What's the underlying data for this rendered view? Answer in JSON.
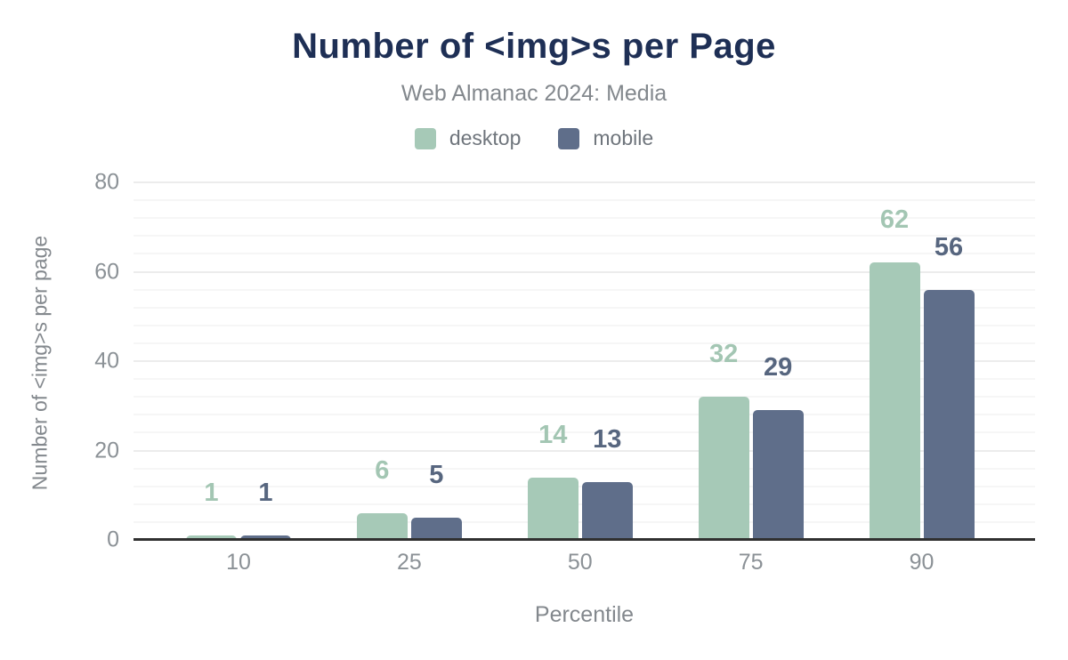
{
  "chart_data": {
    "type": "bar",
    "title": "Number of <img>s per Page",
    "subtitle": "Web Almanac 2024: Media",
    "xlabel": "Percentile",
    "ylabel": "Number of <img>s per page",
    "categories": [
      "10",
      "25",
      "50",
      "75",
      "90"
    ],
    "series": [
      {
        "name": "desktop",
        "color": "#a6c9b7",
        "label_color": "#a3c6b3",
        "values": [
          1,
          6,
          14,
          32,
          62
        ]
      },
      {
        "name": "mobile",
        "color": "#5f6e8a",
        "label_color": "#57667f",
        "values": [
          1,
          5,
          13,
          29,
          56
        ]
      }
    ],
    "ylim": [
      0,
      80
    ],
    "yticks": [
      0,
      20,
      40,
      60,
      80
    ],
    "minor_grid_step": 4,
    "grid": "on",
    "legend_position": "top",
    "background_color": "#ffffff",
    "title_color": "#1e2f55",
    "axis_line_color": "#303030"
  }
}
